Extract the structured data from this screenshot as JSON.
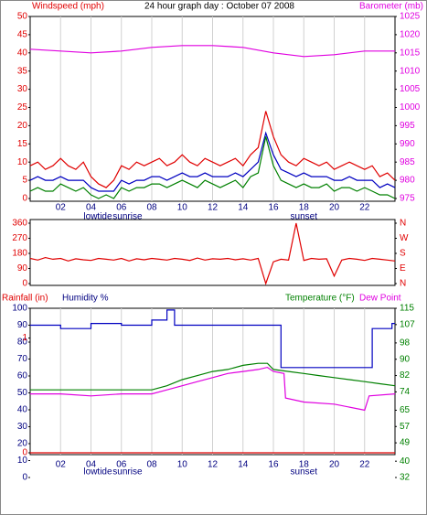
{
  "chart_data": [
    {
      "type": "line",
      "title": "24 hour graph day : October 07 2008",
      "ylabel": "Windspeed (mph)",
      "ycolor": "#e00000",
      "y2label": "Barometer (mb)",
      "y2color": "#e000e0",
      "ylim": [
        0,
        50
      ],
      "yticks": [
        0,
        5,
        10,
        15,
        20,
        25,
        30,
        35,
        40,
        45,
        50
      ],
      "y2lim": [
        975,
        1025
      ],
      "y2ticks": [
        975,
        980,
        985,
        990,
        995,
        1000,
        1005,
        1010,
        1015,
        1020,
        1025
      ],
      "xlim": [
        0,
        24
      ],
      "xticks": [
        {
          "value": 2,
          "label": "02"
        },
        {
          "value": 4,
          "label": "04"
        },
        {
          "value": 6,
          "label": "06"
        },
        {
          "value": 8,
          "label": "08"
        },
        {
          "value": 10,
          "label": "10"
        },
        {
          "value": 12,
          "label": "12"
        },
        {
          "value": 14,
          "label": "14"
        },
        {
          "value": 16,
          "label": "16"
        },
        {
          "value": 18,
          "label": "18"
        },
        {
          "value": 20,
          "label": "20"
        },
        {
          "value": 22,
          "label": "22"
        }
      ],
      "grid": true,
      "annotations": [
        {
          "text": "lowtide",
          "x": 4.45
        },
        {
          "text": "sunrise",
          "x": 6.4
        },
        {
          "text": "sunset",
          "x": 18.0
        }
      ],
      "x": [
        0,
        0.5,
        1,
        1.5,
        2,
        2.5,
        3,
        3.5,
        4,
        4.5,
        5,
        5.5,
        6,
        6.5,
        7,
        7.5,
        8,
        8.5,
        9,
        9.5,
        10,
        10.5,
        11,
        11.5,
        12,
        12.5,
        13,
        13.5,
        14,
        14.5,
        15,
        15.5,
        16,
        16.5,
        17,
        17.5,
        18,
        18.5,
        19,
        19.5,
        20,
        20.5,
        21,
        21.5,
        22,
        22.5,
        23,
        23.5,
        24
      ],
      "series": [
        {
          "color": "#e00000",
          "values": [
            9,
            10,
            8,
            9,
            11,
            9,
            8,
            10,
            6,
            4,
            3,
            5,
            9,
            8,
            10,
            9,
            10,
            11,
            9,
            10,
            12,
            10,
            9,
            11,
            10,
            9,
            10,
            11,
            9,
            12,
            14,
            24,
            17,
            12,
            10,
            9,
            11,
            10,
            9,
            10,
            8,
            9,
            10,
            9,
            8,
            9,
            6,
            7,
            5
          ]
        },
        {
          "color": "#0000c0",
          "values": [
            5,
            6,
            5,
            5,
            6,
            5,
            5,
            5,
            3,
            2,
            2,
            2,
            5,
            4,
            5,
            5,
            6,
            6,
            5,
            6,
            7,
            6,
            6,
            7,
            6,
            6,
            6,
            7,
            6,
            8,
            10,
            18,
            12,
            8,
            7,
            6,
            7,
            6,
            6,
            6,
            5,
            5,
            6,
            5,
            5,
            5,
            3,
            4,
            3
          ]
        },
        {
          "color": "#008000",
          "values": [
            2,
            3,
            2,
            2,
            4,
            3,
            2,
            3,
            1,
            0,
            1,
            0,
            3,
            2,
            3,
            3,
            4,
            4,
            3,
            4,
            5,
            4,
            3,
            5,
            4,
            3,
            4,
            5,
            3,
            6,
            7,
            17,
            9,
            5,
            4,
            3,
            4,
            3,
            3,
            4,
            2,
            3,
            3,
            2,
            3,
            2,
            1,
            1,
            0
          ]
        },
        {
          "color": "#e000e0",
          "axis": "y2",
          "x": [
            0,
            2,
            4,
            6,
            8,
            10,
            12,
            14,
            16,
            18,
            20,
            22,
            24
          ],
          "values": [
            1016,
            1015.5,
            1015,
            1015.5,
            1016.5,
            1017,
            1017,
            1016.5,
            1015,
            1014,
            1014.5,
            1015.5,
            1015.5
          ]
        }
      ]
    },
    {
      "type": "line",
      "ycolor": "#e00000",
      "y2color": "#e00000",
      "ylim": [
        0,
        360
      ],
      "yticks": [
        0,
        90,
        180,
        270,
        360
      ],
      "y2lim": [
        0,
        360
      ],
      "y2ticks": [
        {
          "value": 0,
          "label": "N"
        },
        {
          "value": 90,
          "label": "E"
        },
        {
          "value": 180,
          "label": "S"
        },
        {
          "value": 270,
          "label": "W"
        },
        {
          "value": 360,
          "label": "N"
        }
      ],
      "xlim": [
        0,
        24
      ],
      "grid": true,
      "x": [
        0,
        0.5,
        1,
        1.5,
        2,
        2.5,
        3,
        3.5,
        4,
        4.5,
        5,
        5.5,
        6,
        6.5,
        7,
        7.5,
        8,
        8.5,
        9,
        9.5,
        10,
        10.5,
        11,
        11.5,
        12,
        12.5,
        13,
        13.5,
        14,
        14.5,
        15,
        15.5,
        16,
        16.5,
        17,
        17.5,
        18,
        18.5,
        19,
        19.5,
        20,
        20.5,
        21,
        21.5,
        22,
        22.5,
        23,
        23.5,
        24
      ],
      "series": [
        {
          "color": "#e00000",
          "values": [
            150,
            140,
            155,
            145,
            150,
            135,
            148,
            142,
            138,
            150,
            145,
            140,
            150,
            135,
            148,
            142,
            150,
            145,
            140,
            150,
            145,
            138,
            152,
            140,
            148,
            145,
            150,
            142,
            148,
            140,
            150,
            0,
            130,
            145,
            140,
            360,
            138,
            150,
            145,
            148,
            45,
            140,
            150,
            145,
            138,
            150,
            145,
            140,
            135
          ]
        }
      ]
    },
    {
      "type": "line",
      "ylabel": "Humidity %",
      "ycolor": "#000080",
      "y3label": "Rainfall (in)",
      "y3color": "#e00000",
      "y2label": "Temperature (°F)",
      "y2color": "#008000",
      "y4label": "Dew Point",
      "y4color": "#e000e0",
      "ylim": [
        0,
        100
      ],
      "yticks": [
        0,
        10,
        20,
        30,
        40,
        50,
        60,
        70,
        80,
        90,
        100
      ],
      "y2lim": [
        32,
        115
      ],
      "y2ticks": [
        32,
        40,
        49,
        57,
        65,
        74,
        82,
        90,
        98,
        107,
        115
      ],
      "y3lim": [
        0,
        1.1
      ],
      "y3ticks": [
        0,
        1
      ],
      "xlim": [
        0,
        24
      ],
      "xticks": [
        {
          "value": 2,
          "label": "02"
        },
        {
          "value": 4,
          "label": "04"
        },
        {
          "value": 6,
          "label": "06"
        },
        {
          "value": 8,
          "label": "08"
        },
        {
          "value": 10,
          "label": "10"
        },
        {
          "value": 12,
          "label": "12"
        },
        {
          "value": 14,
          "label": "14"
        },
        {
          "value": 16,
          "label": "16"
        },
        {
          "value": 18,
          "label": "18"
        },
        {
          "value": 20,
          "label": "20"
        },
        {
          "value": 22,
          "label": "22"
        }
      ],
      "grid": true,
      "annotations": [
        {
          "text": "lowtide",
          "x": 4.45
        },
        {
          "text": "sunrise",
          "x": 6.4
        },
        {
          "text": "sunset",
          "x": 18.0
        }
      ],
      "series": [
        {
          "color": "#e00000",
          "axis": "y3",
          "x": [
            0,
            24
          ],
          "values": [
            0,
            0
          ]
        },
        {
          "color": "#0000c0",
          "x": [
            0,
            2,
            2,
            4,
            4,
            6,
            6,
            8,
            8,
            9,
            9,
            9.5,
            9.5,
            16.5,
            16.5,
            22.5,
            22.5,
            23.8,
            23.8,
            24
          ],
          "values": [
            90,
            90,
            88,
            88,
            91,
            91,
            90,
            90,
            93,
            93,
            99,
            99,
            90,
            90,
            65,
            65,
            88,
            88,
            91,
            91
          ]
        },
        {
          "color": "#008000",
          "axis": "y2",
          "x": [
            0,
            2,
            4,
            6,
            8,
            9,
            10,
            11,
            12,
            13,
            14,
            15,
            15.6,
            16,
            17,
            18,
            19,
            20,
            21,
            22,
            23,
            24
          ],
          "values": [
            75,
            75,
            75,
            75,
            75,
            77,
            80,
            82,
            84,
            85,
            87,
            88,
            88,
            85,
            84,
            83,
            82,
            81,
            80,
            79,
            78,
            77
          ]
        },
        {
          "color": "#e000e0",
          "axis": "y2",
          "x": [
            0,
            2,
            4,
            6,
            8,
            9,
            10,
            11,
            12,
            13,
            14,
            15,
            15.6,
            16,
            16.7,
            16.8,
            18,
            20,
            22,
            22.3,
            24
          ],
          "values": [
            73,
            73,
            72,
            73,
            73,
            75,
            77,
            79,
            81,
            83,
            84,
            85,
            86,
            84,
            83,
            71,
            69,
            68,
            65,
            72,
            73
          ]
        }
      ]
    }
  ]
}
